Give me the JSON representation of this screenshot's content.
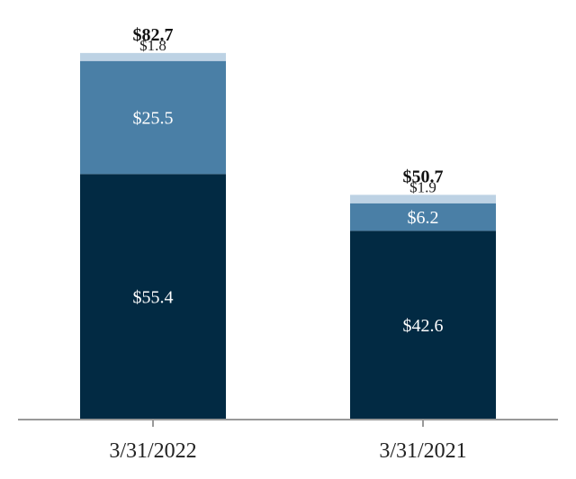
{
  "chart_data": {
    "type": "bar",
    "stacked": true,
    "categories": [
      "3/31/2022",
      "3/31/2021"
    ],
    "series": [
      {
        "values": [
          55.4,
          42.6
        ],
        "color": "#022a43",
        "label_color": "#ffffff"
      },
      {
        "values": [
          25.5,
          6.2
        ],
        "color": "#4a7fa6",
        "label_color": "#ffffff"
      },
      {
        "values": [
          1.8,
          1.9
        ],
        "color": "#bdd2e4",
        "label_color": "#222222"
      }
    ],
    "segment_labels": [
      [
        "$55.4",
        "$25.5",
        "$1.8"
      ],
      [
        "$42.6",
        "$6.2",
        "$1.9"
      ]
    ],
    "totals": [
      82.7,
      50.7
    ],
    "total_labels": [
      "$82.7",
      "$50.7"
    ],
    "title": "",
    "xlabel": "",
    "ylabel": "",
    "ylim": [
      0,
      84.5
    ],
    "grid": false,
    "legend": "none",
    "axis_color": "#999999"
  }
}
